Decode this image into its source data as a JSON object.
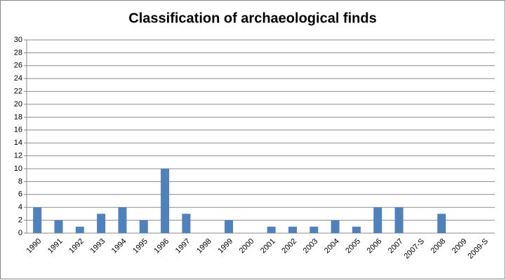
{
  "chart_data": {
    "type": "bar",
    "title": "Classification of archaeological finds",
    "categories": [
      "1990",
      "1991",
      "1992",
      "1993",
      "1994",
      "1995",
      "1996",
      "1997",
      "1998",
      "1999",
      "2000",
      "2001",
      "2002",
      "2003",
      "2004",
      "2005",
      "2006",
      "2007",
      "2007-S",
      "2008",
      "2009",
      "2009-S"
    ],
    "values": [
      4,
      2,
      1,
      3,
      4,
      2,
      10,
      3,
      0,
      2,
      0,
      1,
      1,
      1,
      2,
      1,
      4,
      4,
      0,
      3,
      0,
      0
    ],
    "color": "#4f81bd",
    "ylim": [
      0,
      30
    ],
    "yticks": [
      0,
      2,
      4,
      6,
      8,
      10,
      12,
      14,
      16,
      18,
      20,
      22,
      24,
      26,
      28,
      30
    ],
    "grid": true
  }
}
